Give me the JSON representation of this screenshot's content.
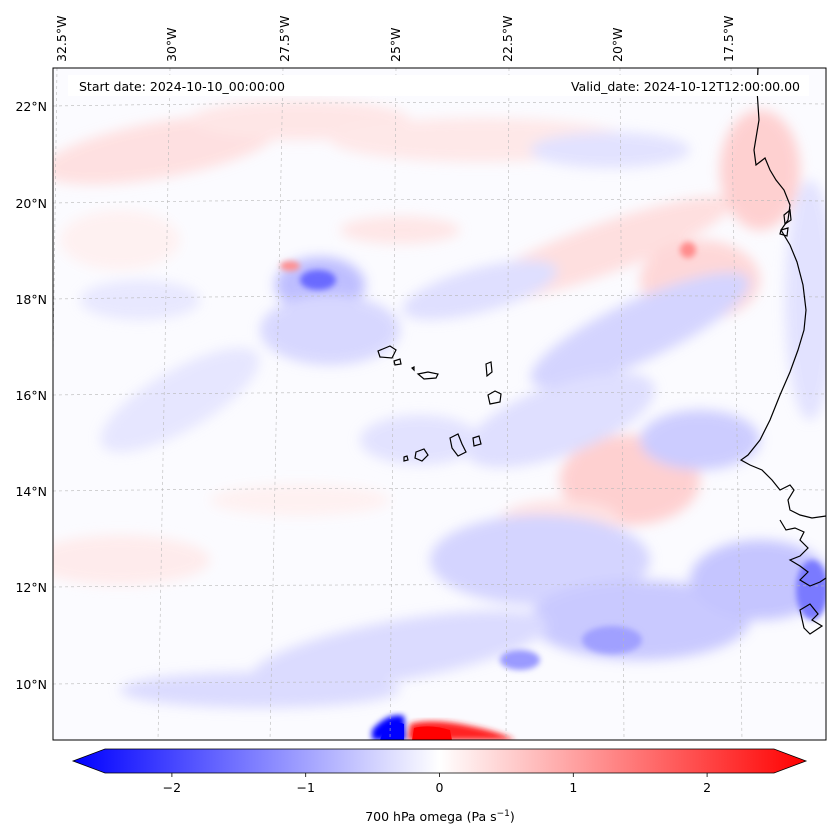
{
  "map": {
    "header": {
      "start_date": "Start date: 2024-10-10_00:00:00",
      "valid_date": "Valid_date: 2024-10-12T12:00:00.00"
    },
    "lon_labels": [
      "32.5°W",
      "30°W",
      "27.5°W",
      "25°W",
      "22.5°W",
      "20°W",
      "17.5°W"
    ],
    "lat_labels": [
      "22°N",
      "20°N",
      "18°N",
      "16°N",
      "14°N",
      "12°N",
      "10°N"
    ],
    "colors": {
      "negative": "#0000ff",
      "positive": "#ff0000",
      "neutral": "#ffffff",
      "gridline": "#b0b0b0",
      "coastline": "#000000"
    },
    "colorbar": {
      "ticks": [
        "−2",
        "−1",
        "0",
        "1",
        "2"
      ],
      "tick_values": [
        -2,
        -1,
        0,
        1,
        2
      ],
      "min": -2.6,
      "max": 2.6,
      "label_main": "700 hPa omega (Pa s",
      "label_exp": "−1",
      "label_close": ")"
    }
  }
}
